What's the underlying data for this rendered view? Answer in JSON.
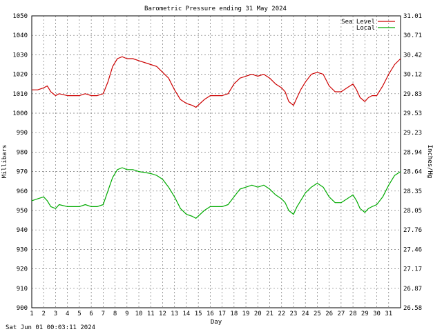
{
  "chart_data": {
    "type": "line",
    "title": "Barometric Pressure ending 31 May 2024",
    "xlabel": "Day",
    "ylabel_left": "Millibars",
    "ylabel_right": "Inches/Hg",
    "timestamp": "Sat Jun 01 00:03:11 2024",
    "xlim": [
      1,
      32
    ],
    "ylim": [
      900,
      1050
    ],
    "grid": true,
    "legend_position": "top-right",
    "x_ticks": [
      1,
      2,
      3,
      4,
      5,
      6,
      7,
      8,
      9,
      10,
      11,
      12,
      13,
      14,
      15,
      16,
      17,
      18,
      19,
      20,
      21,
      22,
      23,
      24,
      25,
      26,
      27,
      28,
      29,
      30,
      31
    ],
    "y_ticks_left": [
      "900",
      "910",
      "920",
      "930",
      "940",
      "950",
      "960",
      "970",
      "980",
      "990",
      "1000",
      "1010",
      "1020",
      "1030",
      "1040",
      "1050"
    ],
    "y_ticks_right": [
      "26.58",
      "26.87",
      "27.17",
      "27.46",
      "27.76",
      "28.05",
      "28.35",
      "28.64",
      "28.94",
      "29.23",
      "29.53",
      "29.83",
      "30.12",
      "30.42",
      "30.71",
      "31.01"
    ],
    "series": [
      {
        "name": "Sea Level",
        "color": "#cc0000",
        "x": [
          1.0,
          1.5,
          2.0,
          2.3,
          2.6,
          3.0,
          3.3,
          4.0,
          5.0,
          5.5,
          6.0,
          6.5,
          7.0,
          7.4,
          7.8,
          8.2,
          8.6,
          9.0,
          9.5,
          10.0,
          11.0,
          11.5,
          12.0,
          12.5,
          13.0,
          13.5,
          14.0,
          14.5,
          14.8,
          15.5,
          16.0,
          17.0,
          17.5,
          18.0,
          18.5,
          19.0,
          19.5,
          20.0,
          20.5,
          21.0,
          21.5,
          22.0,
          22.3,
          22.6,
          23.0,
          23.3,
          23.6,
          24.0,
          24.5,
          25.0,
          25.5,
          26.0,
          26.5,
          27.0,
          27.5,
          28.0,
          28.3,
          28.6,
          29.0,
          29.3,
          29.6,
          30.0,
          30.5,
          31.0,
          31.5,
          32.0
        ],
        "values": [
          1012,
          1012,
          1013,
          1014,
          1011,
          1009,
          1010,
          1009,
          1009,
          1010,
          1009,
          1009,
          1010,
          1016,
          1024,
          1028,
          1029,
          1028,
          1028,
          1027,
          1025,
          1024,
          1021,
          1018,
          1012,
          1007,
          1005,
          1004,
          1003,
          1007,
          1009,
          1009,
          1010,
          1015,
          1018,
          1019,
          1020,
          1019,
          1020,
          1018,
          1015,
          1013,
          1011,
          1006,
          1004,
          1008,
          1012,
          1016,
          1020,
          1021,
          1020,
          1014,
          1011,
          1011,
          1013,
          1015,
          1012,
          1008,
          1006,
          1008,
          1009,
          1009,
          1014,
          1020,
          1025,
          1028
        ]
      },
      {
        "name": "Local",
        "color": "#00aa00",
        "x": [
          1.0,
          1.5,
          2.0,
          2.3,
          2.6,
          3.0,
          3.3,
          4.0,
          5.0,
          5.5,
          6.0,
          6.5,
          7.0,
          7.4,
          7.8,
          8.2,
          8.6,
          9.0,
          9.5,
          10.0,
          11.0,
          11.5,
          12.0,
          12.5,
          13.0,
          13.5,
          14.0,
          14.5,
          14.8,
          15.5,
          16.0,
          17.0,
          17.5,
          18.0,
          18.5,
          19.0,
          19.5,
          20.0,
          20.5,
          21.0,
          21.5,
          22.0,
          22.3,
          22.6,
          23.0,
          23.3,
          23.6,
          24.0,
          24.5,
          25.0,
          25.5,
          26.0,
          26.5,
          27.0,
          27.5,
          28.0,
          28.3,
          28.6,
          29.0,
          29.3,
          29.6,
          30.0,
          30.5,
          31.0,
          31.5,
          32.0
        ],
        "values": [
          955,
          956,
          957,
          955,
          952,
          951,
          953,
          952,
          952,
          953,
          952,
          952,
          953,
          960,
          967,
          971,
          972,
          971,
          971,
          970,
          969,
          968,
          966,
          962,
          957,
          951,
          948,
          947,
          946,
          950,
          952,
          952,
          953,
          957,
          961,
          962,
          963,
          962,
          963,
          961,
          958,
          956,
          954,
          950,
          948,
          952,
          955,
          959,
          962,
          964,
          962,
          957,
          954,
          954,
          956,
          958,
          955,
          951,
          949,
          951,
          952,
          953,
          957,
          963,
          968,
          970
        ]
      }
    ]
  }
}
